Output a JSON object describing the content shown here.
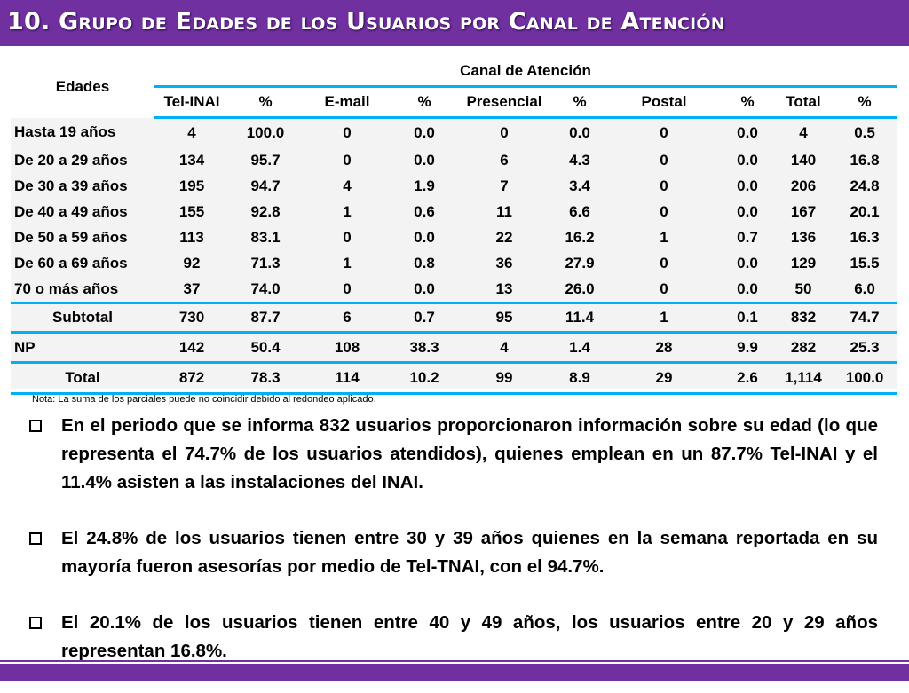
{
  "slide": {
    "title": "10. Grupo de  Edades de los Usuarios por Canal de Atención"
  },
  "table": {
    "row_header": "Edades",
    "group_header": "Canal de Atención",
    "columns": [
      "Tel-INAI",
      "%",
      "E-mail",
      "%",
      "Presencial",
      "%",
      "Postal",
      "%",
      "Total",
      "%"
    ],
    "age_rows": [
      {
        "label": "Hasta 19 años",
        "values": [
          "4",
          "100.0",
          "0",
          "0.0",
          "0",
          "0.0",
          "0",
          "0.0",
          "4",
          "0.5"
        ]
      },
      {
        "label": "De 20 a 29 años",
        "values": [
          "134",
          "95.7",
          "0",
          "0.0",
          "6",
          "4.3",
          "0",
          "0.0",
          "140",
          "16.8"
        ]
      },
      {
        "label": "De 30 a 39 años",
        "values": [
          "195",
          "94.7",
          "4",
          "1.9",
          "7",
          "3.4",
          "0",
          "0.0",
          "206",
          "24.8"
        ]
      },
      {
        "label": "De 40 a 49 años",
        "values": [
          "155",
          "92.8",
          "1",
          "0.6",
          "11",
          "6.6",
          "0",
          "0.0",
          "167",
          "20.1"
        ]
      },
      {
        "label": "De 50 a 59 años",
        "values": [
          "113",
          "83.1",
          "0",
          "0.0",
          "22",
          "16.2",
          "1",
          "0.7",
          "136",
          "16.3"
        ]
      },
      {
        "label": "De 60 a 69 años",
        "values": [
          "92",
          "71.3",
          "1",
          "0.8",
          "36",
          "27.9",
          "0",
          "0.0",
          "129",
          "15.5"
        ]
      },
      {
        "label": "70 o más años",
        "values": [
          "37",
          "74.0",
          "0",
          "0.0",
          "13",
          "26.0",
          "0",
          "0.0",
          "50",
          "6.0"
        ]
      }
    ],
    "subtotal": {
      "label": "Subtotal",
      "values": [
        "730",
        "87.7",
        "6",
        "0.7",
        "95",
        "11.4",
        "1",
        "0.1",
        "832",
        "74.7"
      ]
    },
    "np": {
      "label": "NP",
      "values": [
        "142",
        "50.4",
        "108",
        "38.3",
        "4",
        "1.4",
        "28",
        "9.9",
        "282",
        "25.3"
      ]
    },
    "total": {
      "label": "Total",
      "values": [
        "872",
        "78.3",
        "114",
        "10.2",
        "99",
        "8.9",
        "29",
        "2.6",
        "1,114",
        "100.0"
      ]
    }
  },
  "note": "Nota: La suma de los parciales puede no coincidir debido al redondeo aplicado.",
  "bullets": [
    "En el periodo que se informa 832 usuarios proporcionaron información sobre su edad (lo que representa el 74.7% de los usuarios atendidos),  quienes emplean en un 87.7% Tel-INAI y el 11.4% asisten a las instalaciones del INAI.",
    "El 24.8% de los usuarios tienen entre 30 y 39 años quienes en la semana reportada en su mayoría fueron asesorías por medio de Tel-TNAI, con el 94.7%.",
    "El 20.1% de los usuarios tienen entre 40 y 49 años, los usuarios entre 20 y 29 años representan 16.8%."
  ],
  "colors": {
    "brand_purple": "#7030a0",
    "rule_blue": "#00b0f0",
    "table_bg": "#f3f3f3"
  }
}
